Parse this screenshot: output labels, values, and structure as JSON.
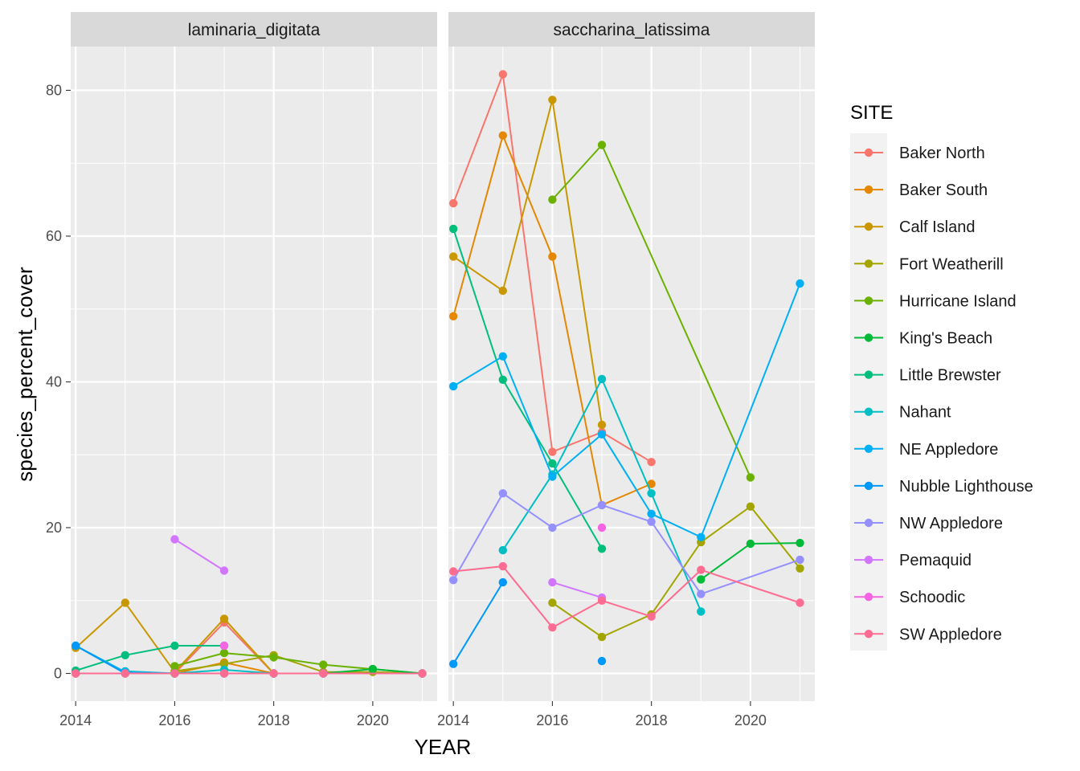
{
  "chart_data": {
    "type": "line",
    "xlabel": "YEAR",
    "ylabel": "species_percent_cover",
    "x_ticks": [
      "2014",
      "2016",
      "2018",
      "2020"
    ],
    "y_ticks": [
      "0",
      "20",
      "40",
      "60",
      "80"
    ],
    "xlim": [
      2013.9,
      2021.3
    ],
    "ylim": [
      -3.8,
      86
    ],
    "grid": true,
    "legend": {
      "title": "SITE",
      "position": "right",
      "entries": [
        "Baker North",
        "Baker South",
        "Calf Island",
        "Fort Weatherill",
        "Hurricane Island",
        "King's Beach",
        "Little Brewster",
        "Nahant",
        "NE Appledore",
        "Nubble Lighthouse",
        "NW Appledore",
        "Pemaquid",
        "Schoodic",
        "SW Appledore"
      ]
    },
    "colors": {
      "Baker North": "#F8766D",
      "Baker South": "#E58700",
      "Calf Island": "#C99800",
      "Fort Weatherill": "#A3A500",
      "Hurricane Island": "#6BB100",
      "King's Beach": "#00BA38",
      "Little Brewster": "#00BF7D",
      "Nahant": "#00BFC4",
      "NE Appledore": "#00B0F6",
      "Nubble Lighthouse": "#0099F8",
      "NW Appledore": "#9590FF",
      "Pemaquid": "#D376FF",
      "Schoodic": "#F564E3",
      "SW Appledore": "#FF6C91"
    },
    "panels": [
      {
        "strip": "laminaria_digitata",
        "series": [
          {
            "name": "Baker North",
            "points": [
              [
                2014,
                0
              ],
              [
                2015,
                0
              ],
              [
                2016,
                0
              ],
              [
                2017,
                7
              ],
              [
                2018,
                0
              ]
            ]
          },
          {
            "name": "Baker South",
            "points": [
              [
                2014,
                0
              ],
              [
                2015,
                0
              ],
              [
                2016,
                0
              ],
              [
                2017,
                1.5
              ],
              [
                2018,
                0
              ]
            ]
          },
          {
            "name": "Calf Island",
            "points": [
              [
                2014,
                3.5
              ],
              [
                2015,
                9.7
              ],
              [
                2016,
                0.2
              ],
              [
                2017,
                7.5
              ],
              [
                2018,
                0
              ]
            ]
          },
          {
            "name": "Fort Weatherill",
            "points": [
              [
                2016,
                0.3
              ],
              [
                2017,
                1.3
              ],
              [
                2018,
                2.5
              ],
              [
                2019,
                0.2
              ],
              [
                2020,
                0.2
              ],
              [
                2021,
                0
              ]
            ]
          },
          {
            "name": "Hurricane Island",
            "points": [
              [
                2016,
                1
              ],
              [
                2017,
                2.8
              ],
              [
                2018,
                2.2
              ],
              [
                2019,
                1.2
              ],
              [
                2020,
                0.6
              ],
              [
                2021,
                0
              ]
            ]
          },
          {
            "name": "King's Beach",
            "points": [
              [
                2019,
                0
              ],
              [
                2020,
                0.6
              ],
              [
                2021,
                0
              ]
            ]
          },
          {
            "name": "Little Brewster",
            "points": [
              [
                2014,
                0.4
              ],
              [
                2015,
                2.5
              ],
              [
                2016,
                3.8
              ],
              [
                2017,
                3.8
              ]
            ]
          },
          {
            "name": "Nahant",
            "points": [
              [
                2015,
                0.3
              ],
              [
                2016,
                0
              ],
              [
                2017,
                0.5
              ],
              [
                2018,
                0
              ],
              [
                2019,
                0
              ]
            ]
          },
          {
            "name": "NE Appledore",
            "points": [
              [
                2014,
                3.8
              ],
              [
                2015,
                0.2
              ],
              [
                2016,
                0
              ],
              [
                2017,
                0
              ],
              [
                2018,
                0
              ],
              [
                2019,
                0
              ],
              [
                2021,
                0
              ]
            ]
          },
          {
            "name": "Nubble Lighthouse",
            "points": [
              [
                2014,
                3.8
              ],
              [
                2015,
                0
              ],
              [
                2016,
                0
              ],
              [
                2017,
                0
              ]
            ]
          },
          {
            "name": "NW Appledore",
            "points": [
              [
                2014,
                0
              ],
              [
                2015,
                0
              ],
              [
                2016,
                0
              ],
              [
                2017,
                0
              ],
              [
                2018,
                0
              ],
              [
                2019,
                0
              ],
              [
                2021,
                0
              ]
            ]
          },
          {
            "name": "Pemaquid",
            "points": [
              [
                2016,
                18.4
              ],
              [
                2017,
                14.1
              ]
            ]
          },
          {
            "name": "Schoodic",
            "points": [
              [
                2017,
                3.8
              ]
            ]
          },
          {
            "name": "SW Appledore",
            "points": [
              [
                2014,
                0
              ],
              [
                2015,
                0
              ],
              [
                2016,
                0
              ],
              [
                2017,
                0
              ],
              [
                2018,
                0
              ],
              [
                2019,
                0
              ],
              [
                2021,
                0
              ]
            ]
          }
        ]
      },
      {
        "strip": "saccharina_latissima",
        "series": [
          {
            "name": "Baker North",
            "points": [
              [
                2014,
                64.5
              ],
              [
                2015,
                82.2
              ],
              [
                2016,
                30.4
              ],
              [
                2017,
                33.1
              ],
              [
                2018,
                29
              ]
            ]
          },
          {
            "name": "Baker South",
            "points": [
              [
                2014,
                49
              ],
              [
                2015,
                73.8
              ],
              [
                2016,
                57.2
              ],
              [
                2017,
                23.1
              ],
              [
                2018,
                26
              ]
            ]
          },
          {
            "name": "Calf Island",
            "points": [
              [
                2014,
                57.2
              ],
              [
                2015,
                52.5
              ],
              [
                2016,
                78.7
              ],
              [
                2017,
                34.1
              ]
            ]
          },
          {
            "name": "Fort Weatherill",
            "points": [
              [
                2016,
                9.7
              ],
              [
                2017,
                5
              ],
              [
                2018,
                8.1
              ],
              [
                2019,
                18
              ],
              [
                2020,
                22.9
              ],
              [
                2021,
                14.4
              ]
            ]
          },
          {
            "name": "Hurricane Island",
            "points": [
              [
                2016,
                65
              ],
              [
                2017,
                72.5
              ],
              [
                2020,
                26.9
              ]
            ]
          },
          {
            "name": "King's Beach",
            "points": [
              [
                2019,
                12.9
              ],
              [
                2020,
                17.8
              ],
              [
                2021,
                17.9
              ]
            ]
          },
          {
            "name": "Little Brewster",
            "points": [
              [
                2014,
                61
              ],
              [
                2015,
                40.3
              ],
              [
                2016,
                28.8
              ],
              [
                2017,
                17.1
              ]
            ]
          },
          {
            "name": "Nahant",
            "points": [
              [
                2015,
                16.9
              ],
              [
                2016,
                27.3
              ],
              [
                2017,
                40.4
              ],
              [
                2018,
                24.7
              ],
              [
                2019,
                8.5
              ]
            ]
          },
          {
            "name": "NE Appledore",
            "points": [
              [
                2014,
                39.4
              ],
              [
                2015,
                43.5
              ],
              [
                2016,
                27
              ],
              [
                2017,
                32.8
              ],
              [
                2018,
                21.9
              ],
              [
                2019,
                18.7
              ],
              [
                2021,
                53.5
              ]
            ]
          },
          {
            "name": "Nubble Lighthouse",
            "points": [
              [
                2014,
                1.3
              ],
              [
                2015,
                12.5
              ],
              [
                2017,
                1.7
              ]
            ]
          },
          {
            "name": "NW Appledore",
            "points": [
              [
                2014,
                12.8
              ],
              [
                2015,
                24.7
              ],
              [
                2016,
                20
              ],
              [
                2017,
                23.1
              ],
              [
                2018,
                20.8
              ],
              [
                2019,
                10.9
              ],
              [
                2021,
                15.6
              ]
            ]
          },
          {
            "name": "Pemaquid",
            "points": [
              [
                2016,
                12.5
              ],
              [
                2017,
                10.4
              ]
            ]
          },
          {
            "name": "Schoodic",
            "points": [
              [
                2017,
                20
              ]
            ]
          },
          {
            "name": "SW Appledore",
            "points": [
              [
                2014,
                14
              ],
              [
                2015,
                14.7
              ],
              [
                2016,
                6.3
              ],
              [
                2017,
                10
              ],
              [
                2018,
                7.8
              ],
              [
                2019,
                14.2
              ],
              [
                2021,
                9.7
              ]
            ]
          }
        ]
      }
    ]
  }
}
